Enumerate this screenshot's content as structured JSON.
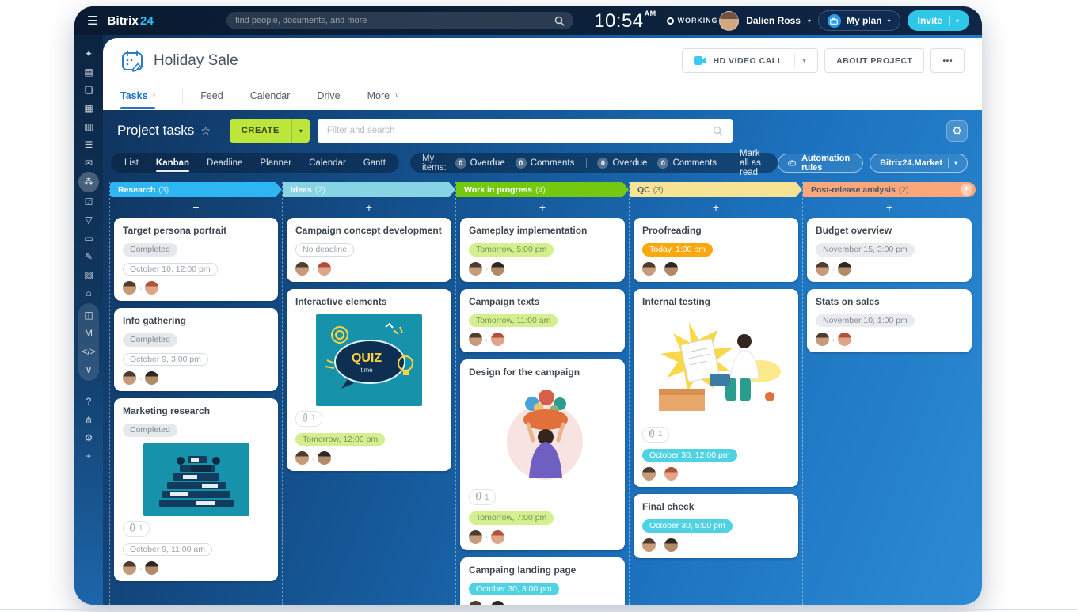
{
  "icons": {
    "menu": "☰",
    "caret_down": "▾",
    "chevron_right": "›",
    "chevron_down": "∨",
    "star": "☆",
    "gear": "⚙",
    "ellipsis": "•••",
    "plus": "+",
    "avatar_sep": "›"
  },
  "topbar": {
    "logo_bitrix": "Bitrix",
    "logo_24": "24",
    "search_placeholder": "find people, documents, and more",
    "time": "10:54",
    "time_suffix": "AM",
    "status_label": "WORKING",
    "user_name": "Dalien Ross",
    "my_plan_label": "My plan",
    "invite_label": "Invite"
  },
  "sidebar": {
    "items": [
      {
        "name": "copilot",
        "glyph": "✦"
      },
      {
        "name": "live-feed",
        "glyph": "▤"
      },
      {
        "name": "messenger",
        "glyph": "❏"
      },
      {
        "name": "video-calls",
        "glyph": "▦"
      },
      {
        "name": "documents",
        "glyph": "▥"
      },
      {
        "name": "drive",
        "glyph": "☰"
      },
      {
        "name": "mail",
        "glyph": "✉"
      },
      {
        "name": "workgroups",
        "glyph": "⁂",
        "active": true
      },
      {
        "name": "tasks",
        "glyph": "☑"
      },
      {
        "name": "crm",
        "glyph": "▽"
      },
      {
        "name": "sites",
        "glyph": "▭"
      },
      {
        "name": "e-sign",
        "glyph": "✎"
      },
      {
        "name": "contacts",
        "glyph": "▧"
      },
      {
        "name": "market",
        "glyph": "⌂"
      },
      {
        "name": "store",
        "glyph": "◫",
        "group": true
      },
      {
        "name": "marketing",
        "glyph": "M",
        "group": true
      },
      {
        "name": "developer",
        "glyph": "</>",
        "group": true
      },
      {
        "name": "collapse",
        "glyph": "∨",
        "group": true
      },
      {
        "name": "help",
        "glyph": "?",
        "spacer": true
      },
      {
        "name": "structure",
        "glyph": "⋔"
      },
      {
        "name": "settings",
        "glyph": "⚙"
      },
      {
        "name": "add",
        "glyph": "+"
      }
    ]
  },
  "project_header": {
    "title": "Holiday Sale",
    "tabs": [
      {
        "label": "Tasks",
        "active": true,
        "arrow": "›",
        "divider_after": true
      },
      {
        "label": "Feed"
      },
      {
        "label": "Calendar"
      },
      {
        "label": "Drive"
      },
      {
        "label": "More",
        "caret": "∨"
      }
    ],
    "hd_video_call_label": "HD VIDEO CALL",
    "about_project_label": "ABOUT PROJECT",
    "more_actions_label": "•••"
  },
  "tasks_bar": {
    "title": "Project tasks",
    "create_label": "CREATE",
    "filter_placeholder": "Filter and search"
  },
  "view_toolbar": {
    "views": [
      {
        "label": "List"
      },
      {
        "label": "Kanban",
        "active": true
      },
      {
        "label": "Deadline"
      },
      {
        "label": "Planner"
      },
      {
        "label": "Calendar"
      },
      {
        "label": "Gantt"
      }
    ],
    "my_items_label": "My items:",
    "counter_groups": [
      [
        {
          "count": "0",
          "label": "Overdue"
        },
        {
          "count": "0",
          "label": "Comments"
        }
      ],
      [
        {
          "count": "0",
          "label": "Overdue"
        },
        {
          "count": "0",
          "label": "Comments"
        }
      ]
    ],
    "mark_all_label": "Mark all as read",
    "automation_rules_label": "Automation rules",
    "market_label": "Bitrix24.Market"
  },
  "board": {
    "columns": [
      {
        "name": "Research",
        "count": "3",
        "bg": "#2eb6f2",
        "fg": "#ffffff",
        "cards": [
          {
            "title": "Target persona portrait",
            "status": "Completed",
            "deadline": {
              "text": "October 10, 12:00 pm",
              "style": "outline"
            },
            "avatars": [
              "m1",
              "w1"
            ]
          },
          {
            "title": "Info gathering",
            "status": "Completed",
            "deadline": {
              "text": "October 9, 3:00 pm",
              "style": "outline"
            },
            "avatars": [
              "m1",
              "m2"
            ]
          },
          {
            "title": "Marketing research",
            "status": "Completed",
            "image": "books",
            "attach": "1",
            "deadline": {
              "text": "October 9, 11:00 am",
              "style": "outline"
            },
            "avatars": [
              "m1",
              "m2"
            ]
          }
        ]
      },
      {
        "name": "Ideas",
        "count": "2",
        "bg": "#87d4e4",
        "fg": "#ffffff",
        "cards": [
          {
            "title": "Campaign concept development",
            "deadline": {
              "text": "No deadline",
              "style": "outline"
            },
            "avatars": [
              "m1",
              "w1"
            ]
          },
          {
            "title": "Interactive elements",
            "image": "quiz",
            "attach": "1",
            "deadline": {
              "text": "Tomorrow, 12:00 pm",
              "style": "green"
            },
            "avatars": [
              "m1",
              "m2"
            ]
          }
        ]
      },
      {
        "name": "Work in progress",
        "count": "4",
        "bg": "#74c80f",
        "fg": "#ffffff",
        "cards": [
          {
            "title": "Gameplay implementation",
            "deadline": {
              "text": "Tomorrow, 5:00 pm",
              "style": "green"
            },
            "avatars": [
              "m1",
              "m2"
            ]
          },
          {
            "title": "Campaign texts",
            "deadline": {
              "text": "Tomorrow, 11:00 am",
              "style": "green"
            },
            "avatars": [
              "m1",
              "w1"
            ]
          },
          {
            "title": "Design for the campaign",
            "image": "flowers",
            "attach": "1",
            "deadline": {
              "text": "Tomorrow, 7:00 pm",
              "style": "green"
            },
            "avatars": [
              "m1",
              "w1"
            ]
          },
          {
            "title": "Campaing landing page",
            "deadline": {
              "text": "October 30, 3:00 pm",
              "style": "cyan"
            },
            "avatars": [
              "m1",
              "m2"
            ]
          }
        ]
      },
      {
        "name": "QC",
        "count": "3",
        "bg": "#f6e494",
        "fg": "#4d5565",
        "cards": [
          {
            "title": "Proofreading",
            "deadline": {
              "text": "Today, 1:00 pm",
              "style": "orange"
            },
            "avatars": [
              "m1",
              "m2"
            ]
          },
          {
            "title": "Internal testing",
            "image": "testing",
            "attach": "1",
            "deadline": {
              "text": "October 30, 12:00 pm",
              "style": "cyan"
            },
            "avatars": [
              "m1",
              "w1"
            ]
          },
          {
            "title": "Final check",
            "deadline": {
              "text": "October 30, 5:00 pm",
              "style": "cyan"
            },
            "avatars": [
              "m1",
              "m2"
            ]
          }
        ]
      },
      {
        "name": "Post-release analysis",
        "count": "2",
        "bg": "#f9a77b",
        "fg": "#4d5565",
        "add_badge": "+",
        "cards": [
          {
            "title": "Budget overview",
            "deadline": {
              "text": "November 15, 3:00 pm",
              "style": "gray"
            },
            "avatars": [
              "m1",
              "m2"
            ]
          },
          {
            "title": "Stats on sales",
            "deadline": {
              "text": "November 10, 1:00 pm",
              "style": "gray"
            },
            "avatars": [
              "m1",
              "w1"
            ]
          }
        ]
      }
    ]
  }
}
